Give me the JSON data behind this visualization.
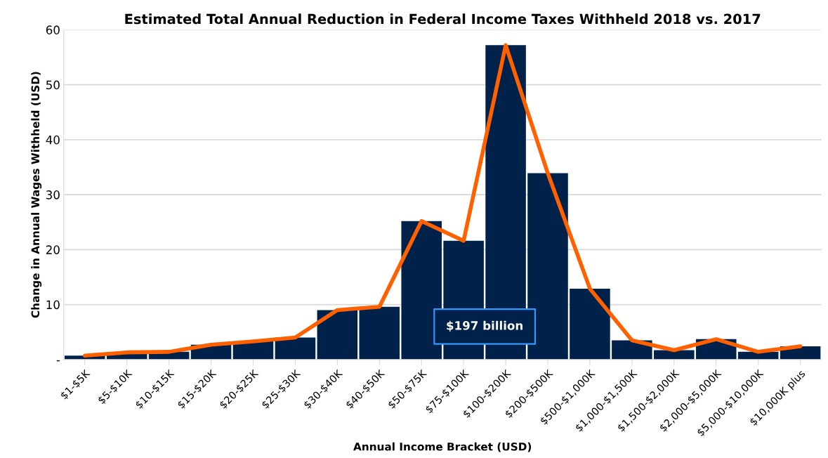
{
  "chart_data": {
    "type": "bar",
    "title": "Estimated Total Annual Reduction in Federal Income Taxes Withheld 2018 vs. 2017",
    "xlabel": "Annual Income Bracket (USD)",
    "ylabel": "Change in Annual Wages Withheld (USD)",
    "categories": [
      "$1-$5K",
      "$5-$10K",
      "$10-$15K",
      "$15-$20K",
      "$20-$25K",
      "$25-$30K",
      "$30-$40K",
      "$40-$50K",
      "$50-$75K",
      "$75-$100K",
      "$100-$200K",
      "$200-$500K",
      "$500-$1,000K",
      "$1,000-$1,500K",
      "$1,500-$2,000K",
      "$2,000-$5,000K",
      "$5,000-$10,000K",
      "$10,000K plus"
    ],
    "series": [
      {
        "color": "#00214a",
        "values": [
          0.7,
          1.3,
          1.4,
          2.7,
          3.3,
          4.0,
          9.0,
          9.6,
          25.2,
          21.6,
          57.2,
          33.9,
          12.9,
          3.5,
          1.7,
          3.7,
          1.4,
          2.4
        ]
      },
      {
        "type": "line",
        "color": "#ff6000",
        "values": [
          0.7,
          1.3,
          1.4,
          2.7,
          3.3,
          4.0,
          9.0,
          9.6,
          25.2,
          21.6,
          57.2,
          33.9,
          12.9,
          3.5,
          1.7,
          3.7,
          1.4,
          2.4
        ]
      }
    ],
    "ylim": [
      0,
      60
    ],
    "yticks": [
      {
        "value": 0,
        "label": "-"
      },
      10,
      20,
      30,
      40,
      50,
      60
    ],
    "grid": "y",
    "legend": false,
    "marker": "none",
    "line_style": "solid",
    "annotations": [
      "$197 billion"
    ]
  }
}
